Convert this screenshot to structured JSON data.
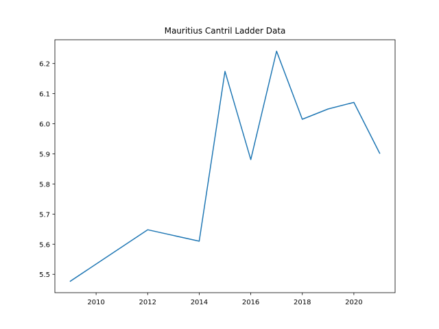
{
  "chart_data": {
    "type": "line",
    "title": "Mauritius Cantril Ladder Data",
    "xlabel": "",
    "ylabel": "",
    "x": [
      2009,
      2012,
      2014,
      2015,
      2016,
      2017,
      2018,
      2019,
      2020,
      2021
    ],
    "series": [
      {
        "values": [
          5.477,
          5.648,
          5.61,
          6.174,
          5.881,
          6.241,
          6.015,
          6.049,
          6.071,
          5.902
        ],
        "color": "#1f77b4"
      }
    ],
    "xlim": [
      2008.4,
      2021.6
    ],
    "ylim": [
      5.439,
      6.279
    ],
    "xticks": [
      "2010",
      "2012",
      "2014",
      "2016",
      "2018",
      "2020"
    ],
    "yticks": [
      "5.5",
      "5.6",
      "5.7",
      "5.8",
      "5.9",
      "6.0",
      "6.1",
      "6.2"
    ],
    "grid": false,
    "legend": "none"
  }
}
